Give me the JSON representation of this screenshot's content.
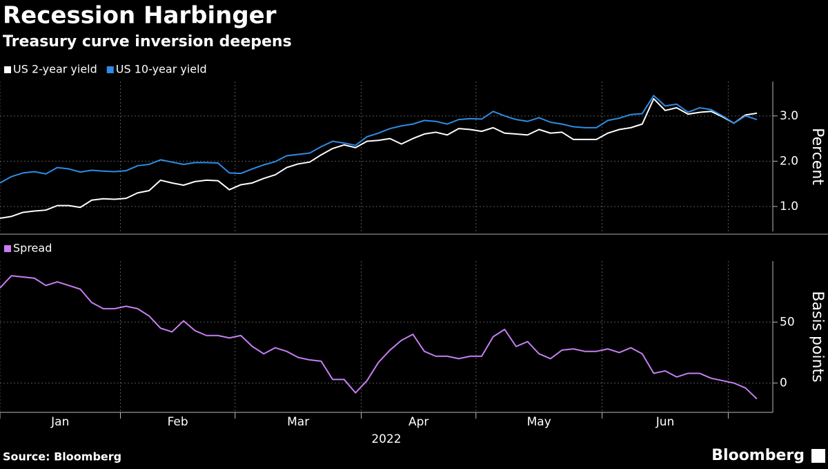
{
  "title": "Recession Harbinger",
  "subtitle": "Treasury curve inversion deepens",
  "source": "Source: Bloomberg",
  "brand": "Bloomberg",
  "chart_data": [
    {
      "type": "line",
      "y_label": "Percent",
      "x_label": "2022",
      "categories": [
        "Jan",
        "Jan",
        "Jan",
        "Jan",
        "Jan",
        "Jan",
        "Jan",
        "Jan",
        "Jan",
        "Jan",
        "Jan",
        "Feb",
        "Feb",
        "Feb",
        "Feb",
        "Feb",
        "Feb",
        "Feb",
        "Feb",
        "Feb",
        "Feb",
        "Mar",
        "Mar",
        "Mar",
        "Mar",
        "Mar",
        "Mar",
        "Mar",
        "Mar",
        "Mar",
        "Mar",
        "Mar",
        "Apr",
        "Apr",
        "Apr",
        "Apr",
        "Apr",
        "Apr",
        "Apr",
        "Apr",
        "Apr",
        "Apr",
        "May",
        "May",
        "May",
        "May",
        "May",
        "May",
        "May",
        "May",
        "May",
        "May",
        "May",
        "Jun",
        "Jun",
        "Jun",
        "Jun",
        "Jun",
        "Jun",
        "Jun",
        "Jun",
        "Jun",
        "Jun",
        "Jun",
        null,
        null,
        null
      ],
      "series": [
        {
          "name": "US 2-year yield",
          "color": "#ffffff",
          "values": [
            0.74,
            0.78,
            0.87,
            0.9,
            0.92,
            1.02,
            1.02,
            0.98,
            1.14,
            1.17,
            1.16,
            1.18,
            1.3,
            1.35,
            1.58,
            1.52,
            1.47,
            1.55,
            1.58,
            1.57,
            1.37,
            1.48,
            1.52,
            1.62,
            1.7,
            1.86,
            1.94,
            1.98,
            2.14,
            2.28,
            2.36,
            2.3,
            2.44,
            2.46,
            2.5,
            2.38,
            2.5,
            2.6,
            2.64,
            2.58,
            2.72,
            2.7,
            2.66,
            2.74,
            2.62,
            2.6,
            2.58,
            2.7,
            2.62,
            2.64,
            2.48,
            2.48,
            2.48,
            2.62,
            2.7,
            2.74,
            2.82,
            3.38,
            3.12,
            3.18,
            3.04,
            3.08,
            3.1,
            2.98,
            2.84,
            3.02,
            3.06
          ]
        },
        {
          "name": "US 10-year yield",
          "color": "#2e8de5",
          "values": [
            1.52,
            1.66,
            1.74,
            1.77,
            1.72,
            1.86,
            1.83,
            1.76,
            1.8,
            1.78,
            1.77,
            1.79,
            1.9,
            1.93,
            2.03,
            1.98,
            1.93,
            1.97,
            1.97,
            1.96,
            1.74,
            1.73,
            1.83,
            1.92,
            1.99,
            2.12,
            2.15,
            2.18,
            2.32,
            2.44,
            2.4,
            2.35,
            2.54,
            2.62,
            2.72,
            2.78,
            2.82,
            2.9,
            2.88,
            2.82,
            2.92,
            2.94,
            2.93,
            3.1,
            3.0,
            2.92,
            2.88,
            2.96,
            2.86,
            2.82,
            2.76,
            2.74,
            2.74,
            2.9,
            2.95,
            3.03,
            3.05,
            3.45,
            3.22,
            3.26,
            3.08,
            3.18,
            3.14,
            3.0,
            2.84,
            3.0,
            2.92
          ]
        }
      ],
      "ylim": [
        0.45,
        3.76
      ],
      "yticks": [
        {
          "value": 1,
          "label": "1.0"
        },
        {
          "value": 2,
          "label": "2.0"
        },
        {
          "value": 3,
          "label": "3.0"
        }
      ],
      "grid": true
    },
    {
      "type": "line",
      "y_label": "Basis points",
      "series": [
        {
          "name": "Spread",
          "color": "#c77ff2",
          "values": [
            78,
            88,
            87,
            86,
            80,
            83,
            80,
            77,
            66,
            61,
            61,
            63,
            61,
            55,
            45,
            42,
            51,
            43,
            39,
            39,
            37,
            39,
            30,
            24,
            29,
            26,
            21,
            19,
            18,
            3,
            3,
            -8,
            2,
            17,
            27,
            35,
            40,
            26,
            22,
            22,
            20,
            22,
            22,
            38,
            44,
            30,
            34,
            24,
            20,
            27,
            28,
            26,
            26,
            28,
            25,
            29,
            24,
            8,
            10,
            5,
            8,
            8,
            4,
            2,
            0,
            -4,
            -13
          ]
        }
      ],
      "ylim": [
        -24,
        100
      ],
      "yticks": [
        0,
        50
      ],
      "grid": true
    }
  ]
}
